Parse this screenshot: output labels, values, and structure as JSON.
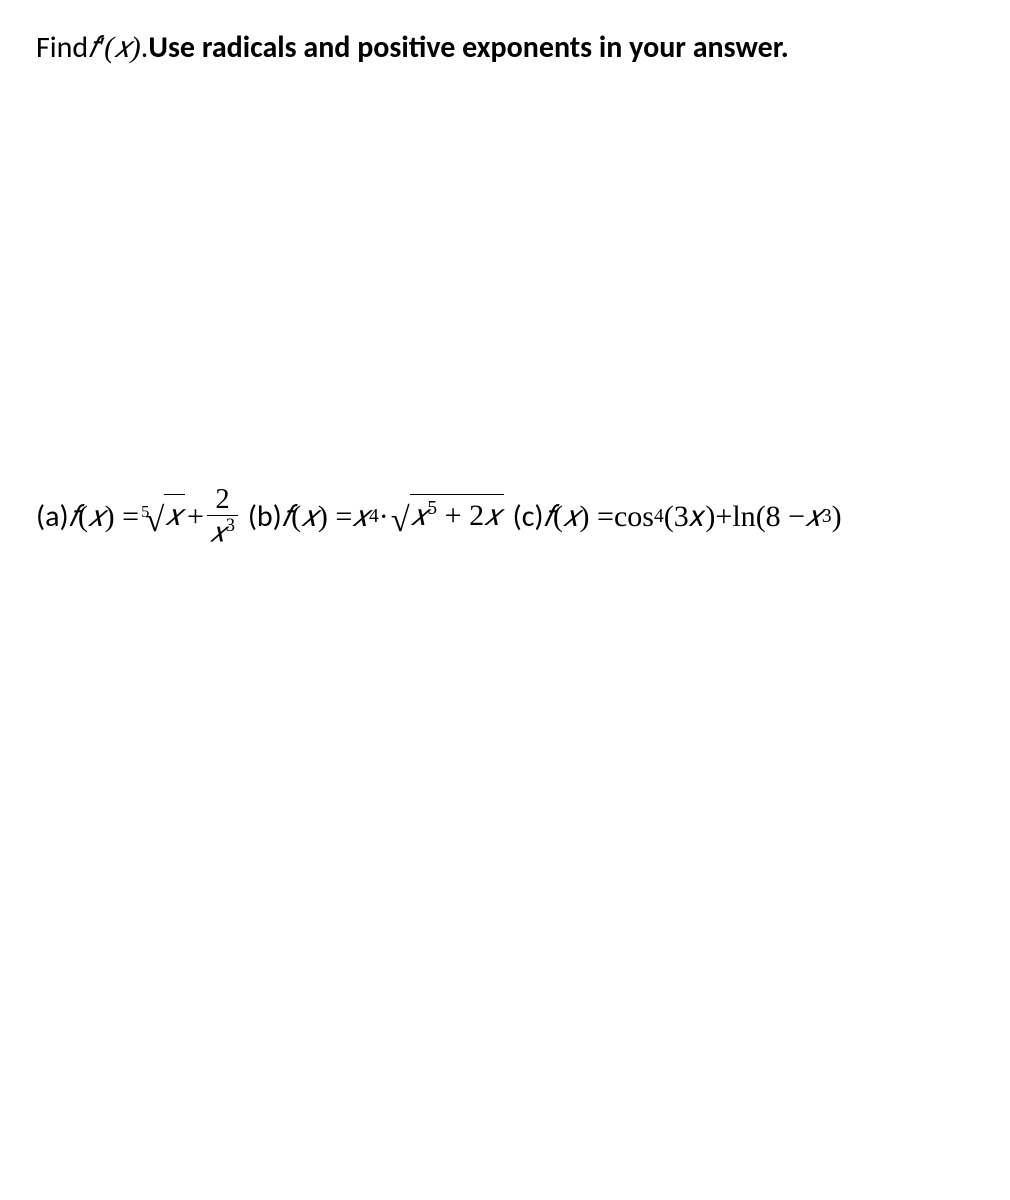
{
  "colors": {
    "text": "#000000",
    "background": "#ffffff"
  },
  "font_family_body": "Calibri, 'Segoe UI', Arial, sans-serif",
  "font_family_math": "'Cambria Math', 'Times New Roman', serif",
  "font_size_pt": 22,
  "prompt": {
    "find": "Find ",
    "fprime": "𝑓′(𝑥)",
    "period": ". ",
    "bold_instruction": "Use radicals and positive exponents in your answer."
  },
  "a": {
    "label": "(a)  ",
    "lhs_f": "𝑓",
    "lhs_open": "(",
    "lhs_x": "𝑥",
    "lhs_close": ") = ",
    "root_index": "5",
    "root_radicand": "𝑥",
    "plus": " + ",
    "frac_num": "2",
    "frac_den_x": "𝑥",
    "frac_den_exp": "3"
  },
  "b": {
    "label": "(b) ",
    "lhs_f": "𝑓",
    "lhs_open": "(",
    "lhs_x": "𝑥",
    "lhs_close": ") = ",
    "x4_base": "𝑥",
    "x4_exp": "4",
    "dot": " · ",
    "root_radicand_x": "𝑥",
    "root_radicand_exp": "5",
    "root_radicand_plus": " + 2",
    "root_radicand_x2": "𝑥"
  },
  "c": {
    "label": "(c) ",
    "lhs_f": "𝑓",
    "lhs_open": "(",
    "lhs_x": "𝑥",
    "lhs_close": ") = ",
    "cos": "cos",
    "cos_exp": "4",
    "cos_arg": "(3𝑥)",
    "plus": " + ",
    "ln": "ln",
    "ln_open": "(8 − ",
    "ln_x": "𝑥",
    "ln_exp": "3",
    "ln_close": ")"
  }
}
